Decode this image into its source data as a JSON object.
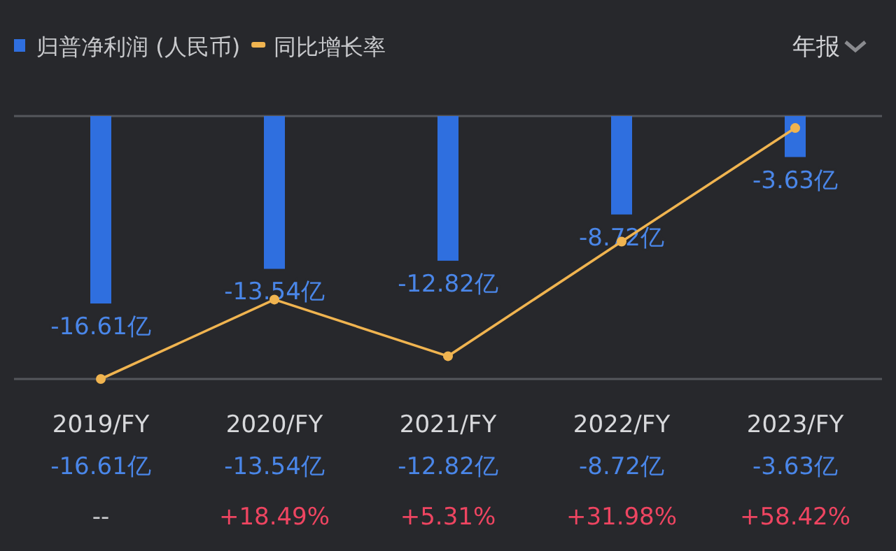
{
  "chart_data": {
    "type": "bar",
    "categories": [
      "2019/FY",
      "2020/FY",
      "2021/FY",
      "2022/FY",
      "2023/FY"
    ],
    "series": [
      {
        "name": "归普净利润 (人民币)",
        "color": "#2f6fdf",
        "values": [
          -16.61,
          -13.54,
          -12.82,
          -8.72,
          -3.63
        ],
        "value_labels": [
          "-16.61亿",
          "-13.54亿",
          "-12.82亿",
          "-8.72亿",
          "-3.63亿"
        ]
      },
      {
        "name": "同比增长率",
        "type": "line",
        "axis": "y2",
        "color": "#f0b450",
        "marker": "circle",
        "values": [
          0,
          18.49,
          5.31,
          31.98,
          58.42
        ],
        "value_labels": [
          "--",
          "+18.49%",
          "+5.31%",
          "+31.98%",
          "+58.42%"
        ]
      }
    ],
    "ylim": [
      -23.3,
      0
    ],
    "y2lim": [
      0,
      61.2
    ],
    "legend": "top left",
    "annotations": [
      "年报"
    ]
  }
}
